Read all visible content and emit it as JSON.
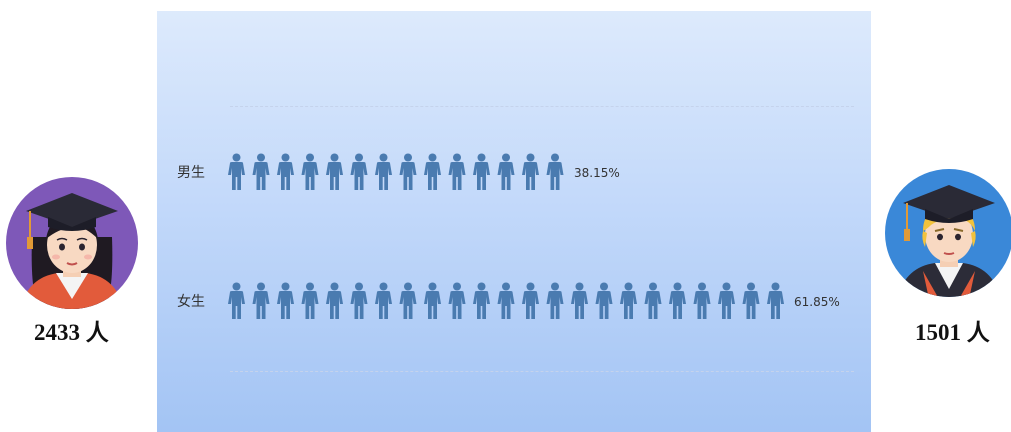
{
  "chart_data": {
    "type": "pictorial-bar",
    "categories": [
      "男生",
      "女生"
    ],
    "series": [
      {
        "category": "男生",
        "percent_label": "38.15%",
        "value": 38.15,
        "icon_count": 14
      },
      {
        "category": "女生",
        "percent_label": "61.85%",
        "value": 61.85,
        "icon_count": 23
      }
    ],
    "icon": "person-icon",
    "icon_color": "#4a7bb0",
    "grid": true
  },
  "left_avatar": {
    "icon": "female-graduate-avatar-icon",
    "count_label": "2433 人",
    "bg_color": "#7e58b8"
  },
  "right_avatar": {
    "icon": "male-graduate-avatar-icon",
    "count_label": "1501 人",
    "bg_color": "#3a88d8"
  },
  "colors": {
    "panel_top": "#ddeafc",
    "panel_bottom": "#a3c4f4"
  }
}
